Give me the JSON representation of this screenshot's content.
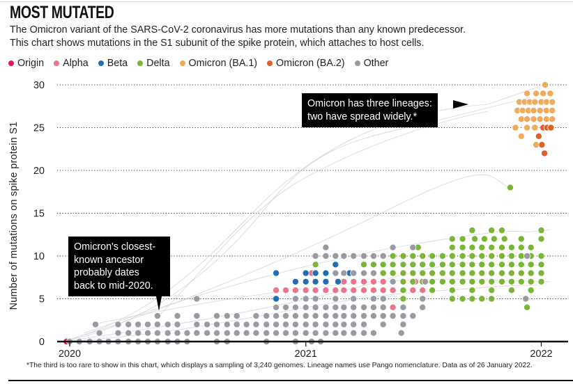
{
  "header": {
    "title": "MOST MUTATED",
    "subtitle_1": "The Omicron variant of the SARS-CoV-2 coronavirus has more mutations than any known predecessor.",
    "subtitle_2": "This chart shows mutations in the S1 subunit of the spike protein, which attaches to host cells."
  },
  "footnote": "*The third is too rare to show in this chart, which displays a sampling of 3,240 genomes. Lineage names use Pango nomenclature. Data as of 26 January 2022.",
  "annotations": [
    {
      "text_1": "Omicron has three lineages:",
      "text_2": "two have spread widely.*"
    },
    {
      "text_1": "Omicron's closest-",
      "text_2": "known ancestor",
      "text_3": "probably dates",
      "text_4": "back to mid-2020."
    }
  ],
  "chart_data": {
    "type": "scatter",
    "title": "",
    "xlabel": "",
    "ylabel": "Number of mutations on spike protein S1",
    "xlim": [
      "2019-12-15",
      "2022-02-05"
    ],
    "ylim": [
      0,
      30
    ],
    "x_ticks": [
      "2020",
      "2021",
      "2022"
    ],
    "y_ticks": [
      "0",
      "5",
      "10",
      "15",
      "20",
      "25",
      "30"
    ],
    "grid": "horizontal dotted",
    "legend_position": "top-left",
    "series": [
      {
        "name": "Origin",
        "color": "#e0195a",
        "rows": [
          {
            "y": 0,
            "dates": [
              "2019-12-27"
            ]
          }
        ]
      },
      {
        "name": "Alpha",
        "color": "#e8768c",
        "rows": [
          {
            "y": 4,
            "dates": [
              "2021-05-16"
            ]
          },
          {
            "y": 6,
            "dates": [
              "2020-11-16",
              "2020-12-01",
              "2020-12-16",
              "2021-01-01",
              "2021-01-16",
              "2021-02-01",
              "2021-02-16",
              "2021-03-01",
              "2021-03-16",
              "2021-04-01",
              "2021-04-16",
              "2021-05-01",
              "2021-05-16",
              "2021-06-16",
              "2021-07-01"
            ]
          },
          {
            "y": 7,
            "dates": [
              "2021-03-01",
              "2021-03-16",
              "2021-04-01",
              "2021-04-16",
              "2021-05-01",
              "2021-06-20"
            ]
          },
          {
            "y": 8,
            "dates": [
              "2021-01-10"
            ]
          }
        ]
      },
      {
        "name": "Beta",
        "color": "#1f6fb4",
        "rows": [
          {
            "y": 5,
            "dates": [
              "2020-11-16"
            ]
          },
          {
            "y": 7,
            "dates": [
              "2020-12-16",
              "2021-01-01",
              "2021-01-16",
              "2021-02-01",
              "2021-02-20"
            ]
          },
          {
            "y": 8,
            "dates": [
              "2020-11-16",
              "2021-01-01",
              "2021-01-16",
              "2021-02-01",
              "2021-03-10"
            ]
          },
          {
            "y": 9,
            "dates": [
              "2021-02-16"
            ]
          }
        ]
      },
      {
        "name": "Delta",
        "color": "#7bb536",
        "rows": [
          {
            "y": 4,
            "dates": [
              "2021-12-10"
            ]
          },
          {
            "y": 5,
            "dates": [
              "2021-06-01",
              "2021-08-16",
              "2021-09-01",
              "2021-09-16",
              "2021-10-01",
              "2021-10-16"
            ]
          },
          {
            "y": 6,
            "dates": [
              "2021-06-01",
              "2021-07-16",
              "2021-08-16",
              "2021-09-16",
              "2021-10-16",
              "2021-11-16",
              "2021-12-16"
            ]
          },
          {
            "y": 7,
            "dates": [
              "2021-06-01",
              "2021-06-16",
              "2021-07-01",
              "2021-07-16",
              "2021-08-01",
              "2021-08-16",
              "2021-09-01",
              "2021-09-16",
              "2021-10-01",
              "2021-10-16",
              "2021-11-01",
              "2021-11-16",
              "2021-12-01",
              "2021-12-16",
              "2022-01-01"
            ]
          },
          {
            "y": 8,
            "dates": [
              "2021-05-01",
              "2021-05-16",
              "2021-06-01",
              "2021-06-16",
              "2021-07-01",
              "2021-07-16",
              "2021-08-01",
              "2021-08-16",
              "2021-09-01",
              "2021-09-16",
              "2021-10-01",
              "2021-10-16",
              "2021-11-01",
              "2021-11-16",
              "2021-12-01",
              "2021-12-16",
              "2022-01-01"
            ]
          },
          {
            "y": 9,
            "dates": [
              "2021-01-16",
              "2021-04-01",
              "2021-04-16",
              "2021-05-01",
              "2021-05-16",
              "2021-06-01",
              "2021-06-16",
              "2021-07-01",
              "2021-07-16",
              "2021-08-01",
              "2021-08-16",
              "2021-09-01",
              "2021-09-16",
              "2021-10-01",
              "2021-10-16",
              "2021-11-01",
              "2021-11-16",
              "2021-12-01",
              "2021-12-16",
              "2022-01-01"
            ]
          },
          {
            "y": 10,
            "dates": [
              "2021-05-16",
              "2021-06-01",
              "2021-06-16",
              "2021-07-01",
              "2021-07-16",
              "2021-08-01",
              "2021-08-16",
              "2021-09-01",
              "2021-09-16",
              "2021-10-01",
              "2021-10-16",
              "2021-11-01",
              "2021-11-16",
              "2021-12-01",
              "2021-12-16",
              "2022-01-01"
            ]
          },
          {
            "y": 11,
            "dates": [
              "2021-06-24",
              "2021-08-16",
              "2021-09-01",
              "2021-09-16",
              "2021-10-01",
              "2021-10-16",
              "2021-11-01",
              "2021-11-16",
              "2021-12-01",
              "2021-12-16"
            ]
          },
          {
            "y": 12,
            "dates": [
              "2021-08-16",
              "2021-09-01",
              "2021-09-20",
              "2021-10-05",
              "2021-10-20",
              "2021-11-05",
              "2021-12-01",
              "2022-01-01"
            ]
          },
          {
            "y": 13,
            "dates": [
              "2021-09-16",
              "2021-10-16",
              "2021-11-01",
              "2022-01-01"
            ]
          },
          {
            "y": 18,
            "dates": [
              "2021-11-14"
            ]
          }
        ]
      },
      {
        "name": "Omicron (BA.1)",
        "color": "#f0aa5c",
        "rows": [
          {
            "y": 23,
            "dates": [
              "2021-12-24"
            ]
          },
          {
            "y": 24,
            "dates": [
              "2021-12-01"
            ]
          },
          {
            "y": 25,
            "dates": [
              "2021-11-22",
              "2021-12-10",
              "2021-12-22"
            ]
          },
          {
            "y": 26,
            "dates": [
              "2021-12-01",
              "2021-12-10",
              "2021-12-20",
              "2021-12-30",
              "2022-01-09",
              "2022-01-18"
            ]
          },
          {
            "y": 27,
            "dates": [
              "2021-11-25",
              "2021-12-03",
              "2021-12-12",
              "2021-12-20",
              "2021-12-30",
              "2022-01-09",
              "2022-01-18"
            ]
          },
          {
            "y": 28,
            "dates": [
              "2021-11-28",
              "2021-12-06",
              "2021-12-14",
              "2021-12-22",
              "2022-01-01",
              "2022-01-09",
              "2022-01-18"
            ]
          },
          {
            "y": 29,
            "dates": [
              "2021-12-10",
              "2021-12-24",
              "2022-01-04",
              "2022-01-15"
            ]
          },
          {
            "y": 30,
            "dates": [
              "2022-01-07"
            ]
          }
        ]
      },
      {
        "name": "Omicron (BA.2)",
        "color": "#e0602a",
        "rows": [
          {
            "y": 22,
            "dates": [
              "2022-01-06"
            ]
          },
          {
            "y": 23,
            "dates": [
              "2022-01-02"
            ]
          },
          {
            "y": 24,
            "dates": [
              "2021-12-28"
            ]
          },
          {
            "y": 25,
            "dates": [
              "2022-01-04",
              "2022-01-10",
              "2022-01-16"
            ]
          }
        ]
      },
      {
        "name": "Other",
        "color": "#9a9ba2",
        "rows": [
          {
            "y": 0,
            "dates": [
              "2020-01-01",
              "2020-01-16",
              "2020-02-01",
              "2020-02-16",
              "2020-03-01",
              "2020-03-16",
              "2020-04-01",
              "2020-04-16",
              "2020-05-01",
              "2020-05-16",
              "2020-06-01",
              "2020-06-16",
              "2020-07-01",
              "2020-08-16",
              "2020-09-01",
              "2020-11-01",
              "2020-12-16",
              "2021-01-10",
              "2021-01-24"
            ]
          },
          {
            "y": 1,
            "dates": [
              "2020-02-16",
              "2020-03-16",
              "2020-04-01",
              "2020-04-16",
              "2020-05-01",
              "2020-05-16",
              "2020-06-01",
              "2020-06-16",
              "2020-07-01",
              "2020-07-16",
              "2020-08-01",
              "2020-08-16",
              "2020-09-01",
              "2020-09-16",
              "2020-10-01",
              "2020-10-16",
              "2020-11-01",
              "2020-11-16",
              "2020-12-01",
              "2020-12-16",
              "2021-01-01",
              "2021-01-16",
              "2021-02-01",
              "2021-02-16",
              "2021-03-01",
              "2021-03-16",
              "2021-04-01",
              "2021-04-16",
              "2021-05-29"
            ]
          },
          {
            "y": 2,
            "dates": [
              "2020-02-10",
              "2020-03-16",
              "2020-04-01",
              "2020-04-16",
              "2020-05-01",
              "2020-05-16",
              "2020-06-01",
              "2020-06-16",
              "2020-07-16",
              "2020-08-01",
              "2020-08-16",
              "2020-09-01",
              "2020-09-16",
              "2020-10-01",
              "2020-10-16",
              "2020-11-01",
              "2020-11-16",
              "2020-12-01",
              "2020-12-16",
              "2021-01-01",
              "2021-01-16",
              "2021-02-01",
              "2021-02-16",
              "2021-03-01",
              "2021-03-16",
              "2021-04-01",
              "2021-05-01",
              "2021-06-01"
            ]
          },
          {
            "y": 3,
            "dates": [
              "2020-05-16",
              "2020-06-16",
              "2020-07-16",
              "2020-08-16",
              "2020-09-01",
              "2020-09-16",
              "2020-10-16",
              "2020-11-01",
              "2020-11-16",
              "2020-12-01",
              "2020-12-16",
              "2021-01-01",
              "2021-01-16",
              "2021-02-01",
              "2021-02-16",
              "2021-03-01",
              "2021-03-16",
              "2021-04-01",
              "2021-04-16",
              "2021-05-01",
              "2021-05-16",
              "2021-06-01",
              "2021-06-16"
            ]
          },
          {
            "y": 4,
            "dates": [
              "2020-11-16",
              "2020-12-01",
              "2020-12-16",
              "2021-01-01",
              "2021-01-16",
              "2021-02-01",
              "2021-02-16",
              "2021-03-01",
              "2021-03-16",
              "2021-04-01",
              "2021-04-16",
              "2021-05-01",
              "2021-06-01",
              "2021-07-01"
            ]
          },
          {
            "y": 5,
            "dates": [
              "2020-07-16",
              "2020-12-16",
              "2021-01-01",
              "2021-01-16",
              "2021-02-16",
              "2021-03-16",
              "2021-04-16",
              "2021-05-01",
              "2021-07-01",
              "2021-12-08"
            ]
          },
          {
            "y": 7,
            "dates": [
              "2021-05-16",
              "2021-07-05"
            ]
          },
          {
            "y": 8,
            "dates": [
              "2021-02-16",
              "2021-03-01",
              "2021-03-16",
              "2021-04-01",
              "2021-04-16"
            ]
          },
          {
            "y": 10,
            "dates": [
              "2021-01-16",
              "2021-02-01",
              "2021-02-16",
              "2021-03-01",
              "2021-03-16",
              "2021-04-01",
              "2021-04-16",
              "2021-05-01",
              "2021-12-10"
            ]
          },
          {
            "y": 11,
            "dates": [
              "2021-02-01",
              "2021-05-16",
              "2021-06-16"
            ]
          }
        ]
      }
    ]
  }
}
